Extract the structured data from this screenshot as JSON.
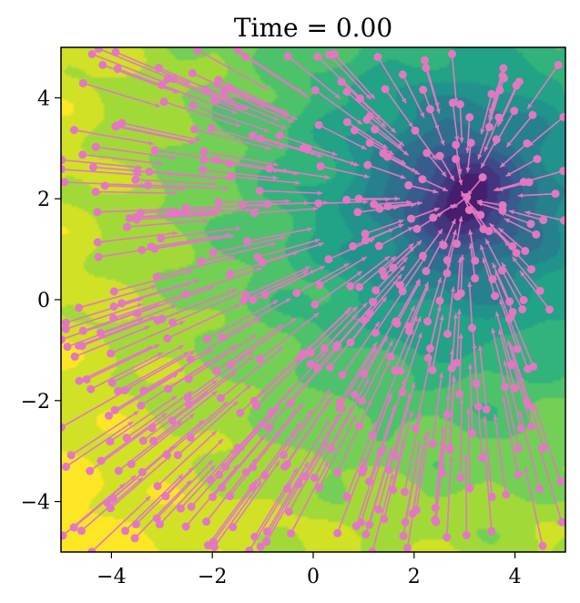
{
  "chart_data": {
    "type": "heatmap",
    "title": "Time = 0.00",
    "xlabel": "",
    "ylabel": "",
    "xlim": [
      -5,
      5
    ],
    "ylim": [
      -5,
      5
    ],
    "xticks": [
      -4,
      -2,
      0,
      2,
      4
    ],
    "xtick_labels": [
      "−4",
      "−2",
      "0",
      "2",
      "4"
    ],
    "yticks": [
      -4,
      -2,
      0,
      2,
      4
    ],
    "ytick_labels": [
      "−4",
      "−2",
      "0",
      "2",
      "4"
    ],
    "grid": false,
    "colormap": "viridis",
    "field": {
      "description_source": "filled contour of a potential with a single well",
      "well_center": [
        3,
        2
      ]
    },
    "particles": {
      "count": 420,
      "marker_color": "#e377c2",
      "arrow_direction": "toward well center"
    }
  }
}
